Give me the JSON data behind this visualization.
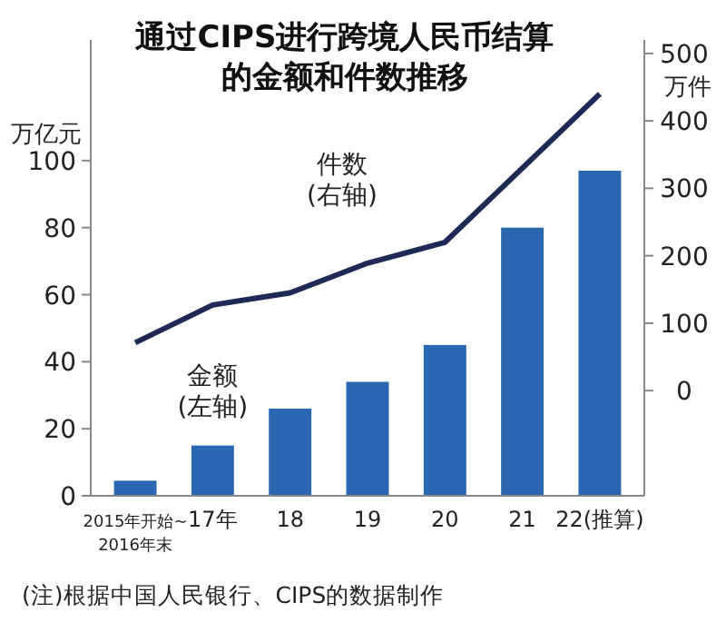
{
  "chart_data": {
    "type": "bar",
    "title": "通过CIPS进行跨境人民币结算的金额和件数推移",
    "ylabel": "万亿元",
    "y2label": "万件",
    "categories": [
      "2015年开始~\n2016年末",
      "17年",
      "18",
      "19",
      "20",
      "21",
      "22(推算)"
    ],
    "series": [
      {
        "name": "金额\n(左轴)",
        "color": "#2a67b1",
        "values": [
          4.5,
          15,
          26,
          34,
          45,
          80,
          97
        ]
      },
      {
        "name": "件数\n(右轴)",
        "type": "line",
        "axis": "y2",
        "color": "#1e2a55",
        "values": [
          71,
          127,
          145,
          189,
          220,
          330,
          440
        ]
      }
    ],
    "ylim": [
      0,
      136
    ],
    "yticks": [
      0,
      20,
      40,
      60,
      80,
      100
    ],
    "y2lim": [
      -156,
      520
    ],
    "y2ticks": [
      0,
      100,
      200,
      300,
      400,
      500
    ],
    "grid": false,
    "legend": false,
    "marker": "none",
    "line_style": "solid",
    "annotations": [
      "(注)根据中国人民银行、CIPS的数据制作"
    ]
  }
}
